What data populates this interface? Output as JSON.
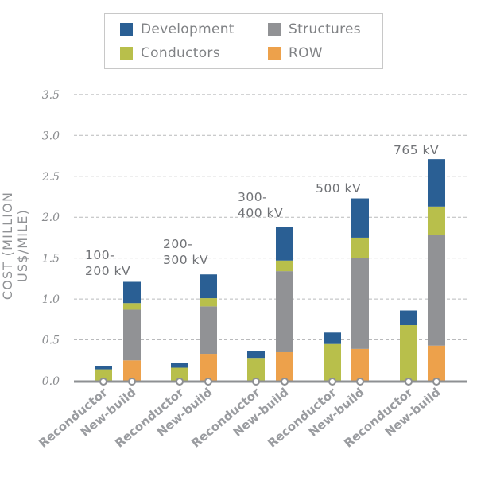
{
  "chart_data": {
    "type": "bar",
    "stacked": true,
    "title": "",
    "xlabel": "",
    "ylabel": "COST (MILLION US$/MILE)",
    "ylim": [
      0,
      3.5
    ],
    "yticks": [
      "0.0",
      "0.5",
      "1.0",
      "1.5",
      "2.0",
      "2.5",
      "3.0",
      "3.5"
    ],
    "grid": true,
    "legend_position": "top-center",
    "groups": [
      {
        "label": "100-\n200 kV",
        "label_lines": [
          "100-",
          "200 kV"
        ]
      },
      {
        "label": "200-\n300 kV",
        "label_lines": [
          "200-",
          "300 kV"
        ]
      },
      {
        "label": "300-\n400 kV",
        "label_lines": [
          "300-",
          "400 kV"
        ]
      },
      {
        "label": "500 kV",
        "label_lines": [
          "500 kV"
        ]
      },
      {
        "label": "765 kV",
        "label_lines": [
          "765 kV"
        ]
      }
    ],
    "categories": [
      "Reconductor",
      "New-build",
      "Reconductor",
      "New-build",
      "Reconductor",
      "New-build",
      "Reconductor",
      "New-build",
      "Reconductor",
      "New-build"
    ],
    "series": [
      {
        "name": "ROW",
        "color": "#eda14b",
        "values": [
          0,
          0.25,
          0,
          0.33,
          0,
          0.35,
          0,
          0.39,
          0,
          0.43
        ]
      },
      {
        "name": "Structures",
        "color": "#919295",
        "values": [
          0,
          0.62,
          0,
          0.58,
          0,
          0.99,
          0,
          1.11,
          0,
          1.35
        ]
      },
      {
        "name": "Conductors",
        "color": "#b8bf4b",
        "values": [
          0.14,
          0.08,
          0.16,
          0.1,
          0.28,
          0.13,
          0.45,
          0.25,
          0.68,
          0.35
        ]
      },
      {
        "name": "Development",
        "color": "#2a5f94",
        "values": [
          0.04,
          0.26,
          0.06,
          0.29,
          0.08,
          0.41,
          0.14,
          0.48,
          0.18,
          0.58
        ]
      }
    ],
    "legend": [
      {
        "name": "Development",
        "color": "#2a5f94"
      },
      {
        "name": "Structures",
        "color": "#919295"
      },
      {
        "name": "Conductors",
        "color": "#b8bf4b"
      },
      {
        "name": "ROW",
        "color": "#eda14b"
      }
    ]
  }
}
